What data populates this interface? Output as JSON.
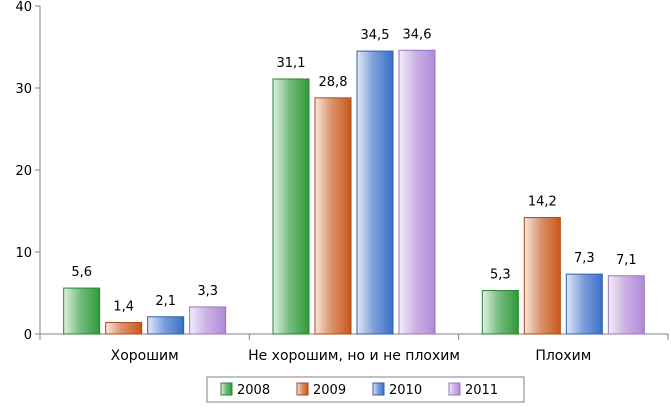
{
  "chart_data": {
    "type": "bar",
    "categories": [
      "Хорошим",
      "Не хорошим, но и не плохим",
      "Плохим"
    ],
    "series": [
      {
        "name": "2008",
        "values": [
          5.6,
          31.1,
          5.3
        ],
        "labels": [
          "5,6",
          "31,1",
          "5,3"
        ],
        "color": "#2e9a3a"
      },
      {
        "name": "2009",
        "values": [
          1.4,
          28.8,
          14.2
        ],
        "labels": [
          "1,4",
          "28,8",
          "14,2"
        ],
        "color": "#c8581c"
      },
      {
        "name": "2010",
        "values": [
          2.1,
          34.5,
          7.3
        ],
        "labels": [
          "2,1",
          "34,5",
          "7,3"
        ],
        "color": "#3a6fc8"
      },
      {
        "name": "2011",
        "values": [
          3.3,
          34.6,
          7.1
        ],
        "labels": [
          "3,3",
          "34,6",
          "7,1"
        ],
        "color": "#b08ad8"
      }
    ],
    "yticks": [
      "0",
      "10",
      "20",
      "30",
      "40"
    ],
    "ylim": [
      0,
      40
    ],
    "grid": false,
    "legend": "bottom-center",
    "title": "",
    "xlabel": "",
    "ylabel": ""
  }
}
